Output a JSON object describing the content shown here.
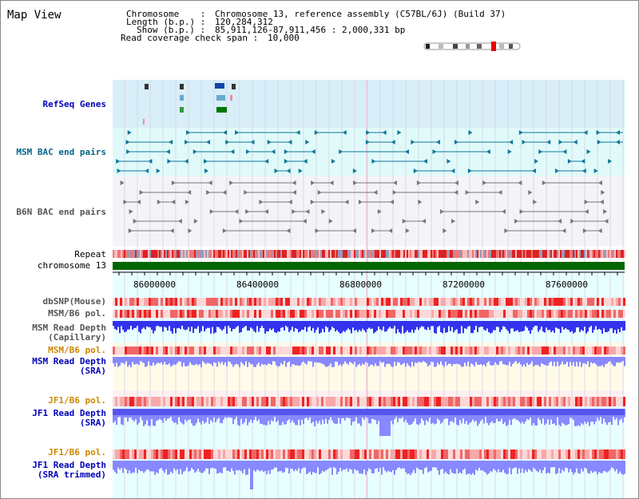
{
  "title": "Map View",
  "info": {
    "chromosome_label": "Chromosome",
    "chromosome_value": "Chromosome 13, reference assembly (C57BL/6J) (Build 37)",
    "length_label": "Length (b.p.)",
    "length_value": "120,284,312",
    "show_label": "Show (b.p.)",
    "show_value": "85,911,126-87,911,456 : 2,000,331 bp",
    "coverage_label": "Read coverage check span",
    "coverage_value": "10,000"
  },
  "tracks": {
    "refseq": "RefSeq Genes",
    "msm_bac": "MSM BAC end pairs",
    "b6n_bac": "B6N BAC end pairs",
    "repeat": "Repeat",
    "chromosome": "chromosome 13",
    "dbsnp": "dbSNP(Mouse)",
    "msm_b6_pol_1": "MSM/B6 pol.",
    "msm_read_depth_cap_1": "MSM Read Depth",
    "msm_read_depth_cap_2": "(Capillary)",
    "msm_b6_pol_2": "MSM/B6 pol.",
    "msm_read_depth_sra_1": "MSM Read Depth",
    "msm_read_depth_sra_2": "(SRA)",
    "jf1_b6_pol_1": "JF1/B6 pol.",
    "jf1_read_depth_sra_1": "JF1 Read Depth",
    "jf1_read_depth_sra_2": "(SRA)",
    "jf1_b6_pol_2": "JF1/B6 pol.",
    "jf1_read_depth_trim_1": "JF1 Read Depth",
    "jf1_read_depth_trim_2": "(SRA trimmed)"
  },
  "axis_ticks": [
    "86000000",
    "86400000",
    "86800000",
    "87200000",
    "87600000"
  ],
  "colors": {
    "refseq_bg": "#d8eef8",
    "msm_bac_bg": "#e0fafa",
    "b6n_bac_bg": "#f4f4f8",
    "chromosome_bar": "#006600",
    "depth_blue": "#3333ee",
    "depth_light": "#8888ff",
    "pol_red": "#ee3333"
  }
}
